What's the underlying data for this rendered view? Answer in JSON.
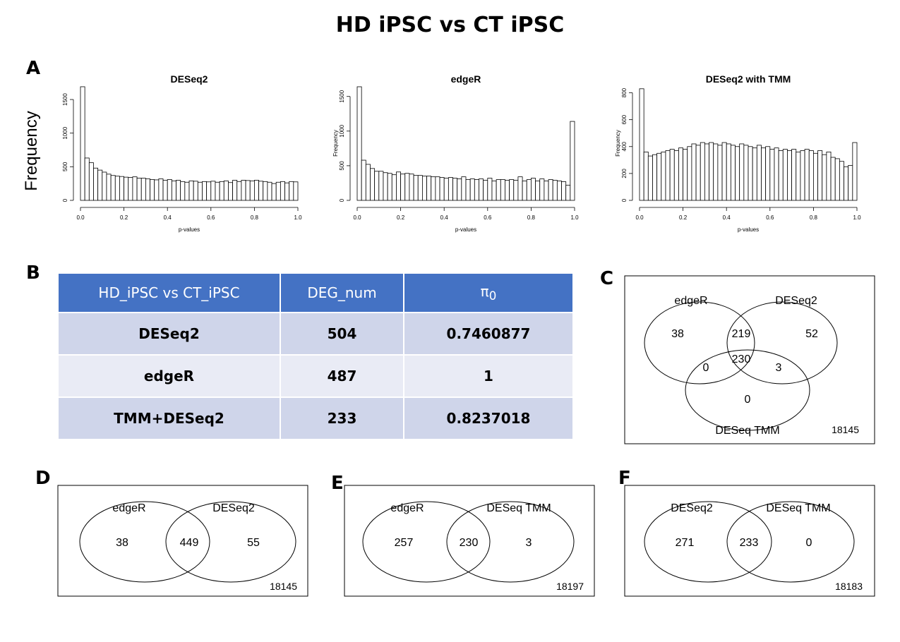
{
  "figure": {
    "title": "HD iPSC vs CT iPSC",
    "panel_labels": {
      "A": "A",
      "B": "B",
      "C": "C",
      "D": "D",
      "E": "E",
      "F": "F"
    },
    "shared_ylabel": "Frequency"
  },
  "table": {
    "headers": [
      "HD_iPSC vs CT_iPSC",
      "DEG_num",
      "π"
    ],
    "pi_subscript": "0",
    "rows": [
      {
        "method": "DESeq2",
        "deg_num": "504",
        "pi0": "0.7460877"
      },
      {
        "method": "edgeR",
        "deg_num": "487",
        "pi0": "1"
      },
      {
        "method": "TMM+DESeq2",
        "deg_num": "233",
        "pi0": "0.8237018"
      }
    ]
  },
  "venn": {
    "C": {
      "labels": [
        "edgeR",
        "DESeq2",
        "DESeq TMM"
      ],
      "counts": {
        "edgeR_only": "38",
        "deseq2_only": "52",
        "tmm_only": "0",
        "edgeR_deseq2": "219",
        "edgeR_tmm": "0",
        "deseq2_tmm": "3",
        "all": "230"
      },
      "outside": "18145"
    },
    "D": {
      "labels": [
        "edgeR",
        "DESeq2"
      ],
      "counts": {
        "left": "38",
        "both": "449",
        "right": "55"
      },
      "outside": "18145"
    },
    "E": {
      "labels": [
        "edgeR",
        "DESeq TMM"
      ],
      "counts": {
        "left": "257",
        "both": "230",
        "right": "3"
      },
      "outside": "18197"
    },
    "F": {
      "labels": [
        "DESeq2",
        "DESeq TMM"
      ],
      "counts": {
        "left": "271",
        "both": "233",
        "right": "0"
      },
      "outside": "18183"
    }
  },
  "chart_data": [
    {
      "type": "bar",
      "title": "DESeq2",
      "xlabel": "p-values",
      "ylabel": "Frequency",
      "xlim": [
        0,
        1
      ],
      "ylim": [
        0,
        1700
      ],
      "xticks": [
        "0.0",
        "0.2",
        "0.4",
        "0.6",
        "0.8",
        "1.0"
      ],
      "yticks": [
        "0",
        "500",
        "1000",
        "1500"
      ],
      "bin_width": 0.02,
      "values": [
        1690,
        630,
        560,
        480,
        450,
        420,
        390,
        370,
        360,
        355,
        345,
        340,
        350,
        330,
        330,
        320,
        310,
        305,
        320,
        300,
        310,
        290,
        300,
        280,
        270,
        290,
        285,
        270,
        280,
        275,
        285,
        270,
        280,
        290,
        265,
        300,
        280,
        300,
        295,
        290,
        300,
        285,
        280,
        270,
        250,
        270,
        280,
        260,
        280,
        275
      ]
    },
    {
      "type": "bar",
      "title": "edgeR",
      "xlabel": "p-values",
      "ylabel": "Frequency",
      "xlim": [
        0,
        1
      ],
      "ylim": [
        0,
        1650
      ],
      "xticks": [
        "0.0",
        "0.2",
        "0.4",
        "0.6",
        "0.8",
        "1.0"
      ],
      "yticks": [
        "0",
        "500",
        "1000",
        "1500"
      ],
      "bin_width": 0.02,
      "values": [
        1640,
        580,
        520,
        460,
        420,
        420,
        400,
        390,
        370,
        410,
        380,
        390,
        380,
        360,
        360,
        350,
        350,
        340,
        340,
        330,
        320,
        330,
        320,
        310,
        340,
        300,
        310,
        300,
        310,
        290,
        320,
        280,
        300,
        300,
        290,
        300,
        290,
        340,
        280,
        300,
        320,
        280,
        310,
        280,
        300,
        290,
        280,
        270,
        220,
        1140
      ]
    },
    {
      "type": "bar",
      "title": "DESeq2 with TMM",
      "xlabel": "p-values",
      "ylabel": "Frequency",
      "xlim": [
        0,
        1
      ],
      "ylim": [
        0,
        850
      ],
      "xticks": [
        "0.0",
        "0.2",
        "0.4",
        "0.6",
        "0.8",
        "1.0"
      ],
      "yticks": [
        "0",
        "200",
        "400",
        "600",
        "800"
      ],
      "bin_width": 0.02,
      "values": [
        830,
        360,
        330,
        340,
        350,
        360,
        370,
        380,
        370,
        390,
        380,
        400,
        420,
        410,
        430,
        420,
        430,
        420,
        410,
        430,
        420,
        410,
        400,
        420,
        410,
        400,
        390,
        410,
        390,
        400,
        380,
        390,
        370,
        380,
        370,
        380,
        360,
        370,
        380,
        370,
        350,
        370,
        340,
        360,
        320,
        310,
        290,
        250,
        260,
        430
      ]
    }
  ]
}
